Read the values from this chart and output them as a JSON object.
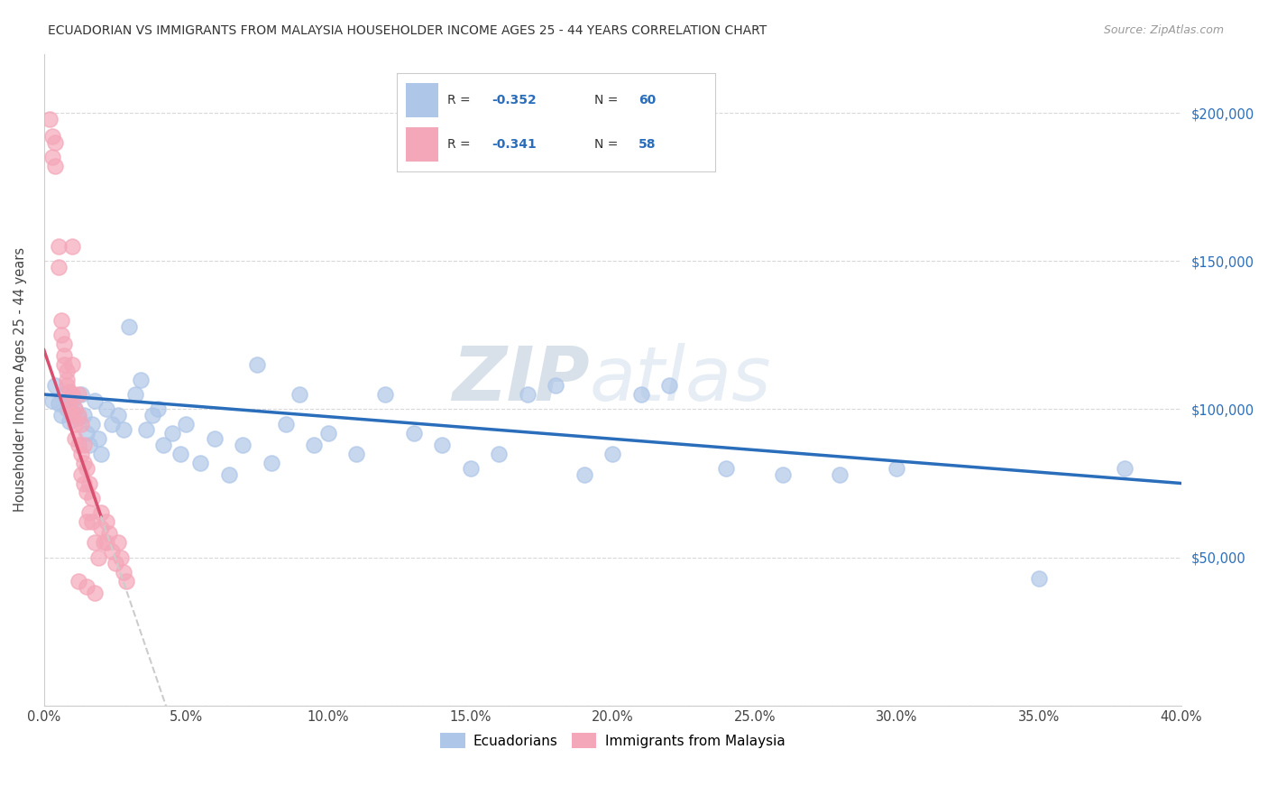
{
  "title": "ECUADORIAN VS IMMIGRANTS FROM MALAYSIA HOUSEHOLDER INCOME AGES 25 - 44 YEARS CORRELATION CHART",
  "source": "Source: ZipAtlas.com",
  "ylabel_label": "Householder Income Ages 25 - 44 years",
  "xlim": [
    0.0,
    0.4
  ],
  "ylim": [
    0,
    220000
  ],
  "blue_R": -0.352,
  "blue_N": 60,
  "pink_R": -0.341,
  "pink_N": 58,
  "blue_color": "#aec6e8",
  "pink_color": "#f4a7b9",
  "blue_line_color": "#2a6ebb",
  "pink_line_color": "#d94f70",
  "watermark_color": "#d0dce8",
  "background_color": "#ffffff",
  "grid_color": "#d8d8d8",
  "blue_scatter": [
    [
      0.003,
      103000
    ],
    [
      0.004,
      108000
    ],
    [
      0.005,
      102000
    ],
    [
      0.006,
      98000
    ],
    [
      0.007,
      105000
    ],
    [
      0.008,
      100000
    ],
    [
      0.009,
      96000
    ],
    [
      0.01,
      103000
    ],
    [
      0.011,
      100000
    ],
    [
      0.012,
      97000
    ],
    [
      0.013,
      105000
    ],
    [
      0.014,
      98000
    ],
    [
      0.015,
      92000
    ],
    [
      0.016,
      88000
    ],
    [
      0.017,
      95000
    ],
    [
      0.018,
      103000
    ],
    [
      0.019,
      90000
    ],
    [
      0.02,
      85000
    ],
    [
      0.022,
      100000
    ],
    [
      0.024,
      95000
    ],
    [
      0.026,
      98000
    ],
    [
      0.028,
      93000
    ],
    [
      0.03,
      128000
    ],
    [
      0.032,
      105000
    ],
    [
      0.034,
      110000
    ],
    [
      0.036,
      93000
    ],
    [
      0.038,
      98000
    ],
    [
      0.04,
      100000
    ],
    [
      0.042,
      88000
    ],
    [
      0.045,
      92000
    ],
    [
      0.048,
      85000
    ],
    [
      0.05,
      95000
    ],
    [
      0.055,
      82000
    ],
    [
      0.06,
      90000
    ],
    [
      0.065,
      78000
    ],
    [
      0.07,
      88000
    ],
    [
      0.075,
      115000
    ],
    [
      0.08,
      82000
    ],
    [
      0.085,
      95000
    ],
    [
      0.09,
      105000
    ],
    [
      0.095,
      88000
    ],
    [
      0.1,
      92000
    ],
    [
      0.11,
      85000
    ],
    [
      0.12,
      105000
    ],
    [
      0.13,
      92000
    ],
    [
      0.14,
      88000
    ],
    [
      0.15,
      80000
    ],
    [
      0.16,
      85000
    ],
    [
      0.17,
      105000
    ],
    [
      0.18,
      108000
    ],
    [
      0.19,
      78000
    ],
    [
      0.2,
      85000
    ],
    [
      0.21,
      105000
    ],
    [
      0.22,
      108000
    ],
    [
      0.24,
      80000
    ],
    [
      0.26,
      78000
    ],
    [
      0.28,
      78000
    ],
    [
      0.3,
      80000
    ],
    [
      0.35,
      43000
    ],
    [
      0.38,
      80000
    ]
  ],
  "pink_scatter": [
    [
      0.002,
      198000
    ],
    [
      0.003,
      192000
    ],
    [
      0.003,
      185000
    ],
    [
      0.004,
      190000
    ],
    [
      0.004,
      182000
    ],
    [
      0.005,
      155000
    ],
    [
      0.005,
      148000
    ],
    [
      0.006,
      130000
    ],
    [
      0.006,
      125000
    ],
    [
      0.007,
      122000
    ],
    [
      0.007,
      118000
    ],
    [
      0.007,
      115000
    ],
    [
      0.008,
      113000
    ],
    [
      0.008,
      110000
    ],
    [
      0.008,
      108000
    ],
    [
      0.009,
      106000
    ],
    [
      0.009,
      103000
    ],
    [
      0.009,
      100000
    ],
    [
      0.01,
      115000
    ],
    [
      0.01,
      105000
    ],
    [
      0.01,
      98000
    ],
    [
      0.011,
      100000
    ],
    [
      0.011,
      95000
    ],
    [
      0.011,
      90000
    ],
    [
      0.012,
      105000
    ],
    [
      0.012,
      98000
    ],
    [
      0.012,
      88000
    ],
    [
      0.013,
      95000
    ],
    [
      0.013,
      85000
    ],
    [
      0.013,
      78000
    ],
    [
      0.014,
      88000
    ],
    [
      0.014,
      82000
    ],
    [
      0.014,
      75000
    ],
    [
      0.015,
      80000
    ],
    [
      0.015,
      72000
    ],
    [
      0.016,
      75000
    ],
    [
      0.016,
      65000
    ],
    [
      0.017,
      70000
    ],
    [
      0.017,
      62000
    ],
    [
      0.018,
      55000
    ],
    [
      0.019,
      50000
    ],
    [
      0.02,
      60000
    ],
    [
      0.021,
      55000
    ],
    [
      0.022,
      62000
    ],
    [
      0.023,
      58000
    ],
    [
      0.024,
      52000
    ],
    [
      0.025,
      48000
    ],
    [
      0.026,
      55000
    ],
    [
      0.027,
      50000
    ],
    [
      0.028,
      45000
    ],
    [
      0.029,
      42000
    ],
    [
      0.01,
      155000
    ],
    [
      0.015,
      62000
    ],
    [
      0.02,
      65000
    ],
    [
      0.022,
      55000
    ],
    [
      0.012,
      42000
    ],
    [
      0.015,
      40000
    ],
    [
      0.018,
      38000
    ]
  ],
  "legend_blue_text": "R = -0.352   N = 60",
  "legend_pink_text": "R = -0.341   N = 58"
}
